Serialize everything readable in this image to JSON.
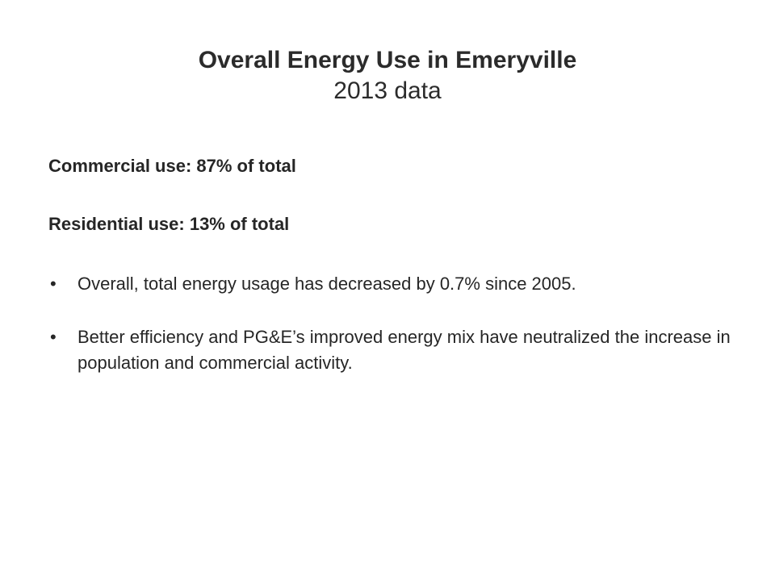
{
  "slide": {
    "title": "Overall Energy Use in Emeryville",
    "subtitle": "2013 data",
    "commercial_line": "Commercial use:  87% of total",
    "residential_line": "Residential use:  13% of total",
    "bullets": [
      {
        "text": "Overall, total energy usage has decreased by 0.7% since 2005."
      },
      {
        "text": "Better efficiency and PG&E’s improved energy mix have neutralized the increase in population and commercial activity."
      }
    ],
    "bullet_glyph": "•"
  }
}
